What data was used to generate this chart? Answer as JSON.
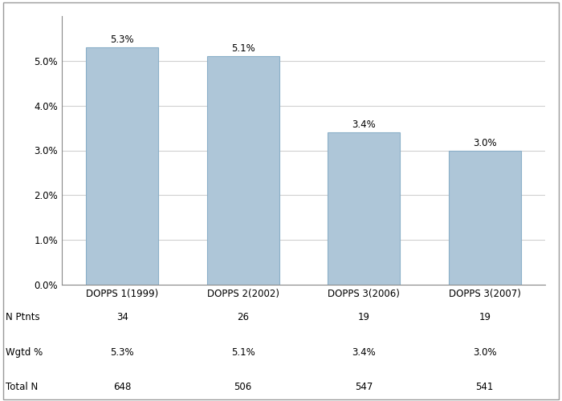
{
  "categories": [
    "DOPPS 1(1999)",
    "DOPPS 2(2002)",
    "DOPPS 3(2006)",
    "DOPPS 3(2007)"
  ],
  "values": [
    5.3,
    5.1,
    3.4,
    3.0
  ],
  "bar_color": "#aec6d8",
  "bar_edge_color": "#8aafc8",
  "value_labels": [
    "5.3%",
    "5.1%",
    "3.4%",
    "3.0%"
  ],
  "ylim": [
    0,
    6.0
  ],
  "yticks": [
    0.0,
    1.0,
    2.0,
    3.0,
    4.0,
    5.0
  ],
  "ytick_labels": [
    "0.0%",
    "1.0%",
    "2.0%",
    "3.0%",
    "4.0%",
    "5.0%"
  ],
  "table_rows": {
    "N Ptnts": [
      "34",
      "26",
      "19",
      "19"
    ],
    "Wgtd %": [
      "5.3%",
      "5.1%",
      "3.4%",
      "3.0%"
    ],
    "Total N": [
      "648",
      "506",
      "547",
      "541"
    ]
  },
  "table_row_order": [
    "N Ptnts",
    "Wgtd %",
    "Total N"
  ],
  "background_color": "#ffffff",
  "plot_bg_color": "#ffffff",
  "grid_color": "#d0d0d0",
  "bar_width": 0.6,
  "label_fontsize": 8.5,
  "tick_fontsize": 8.5,
  "table_fontsize": 8.5,
  "border_color": "#999999"
}
